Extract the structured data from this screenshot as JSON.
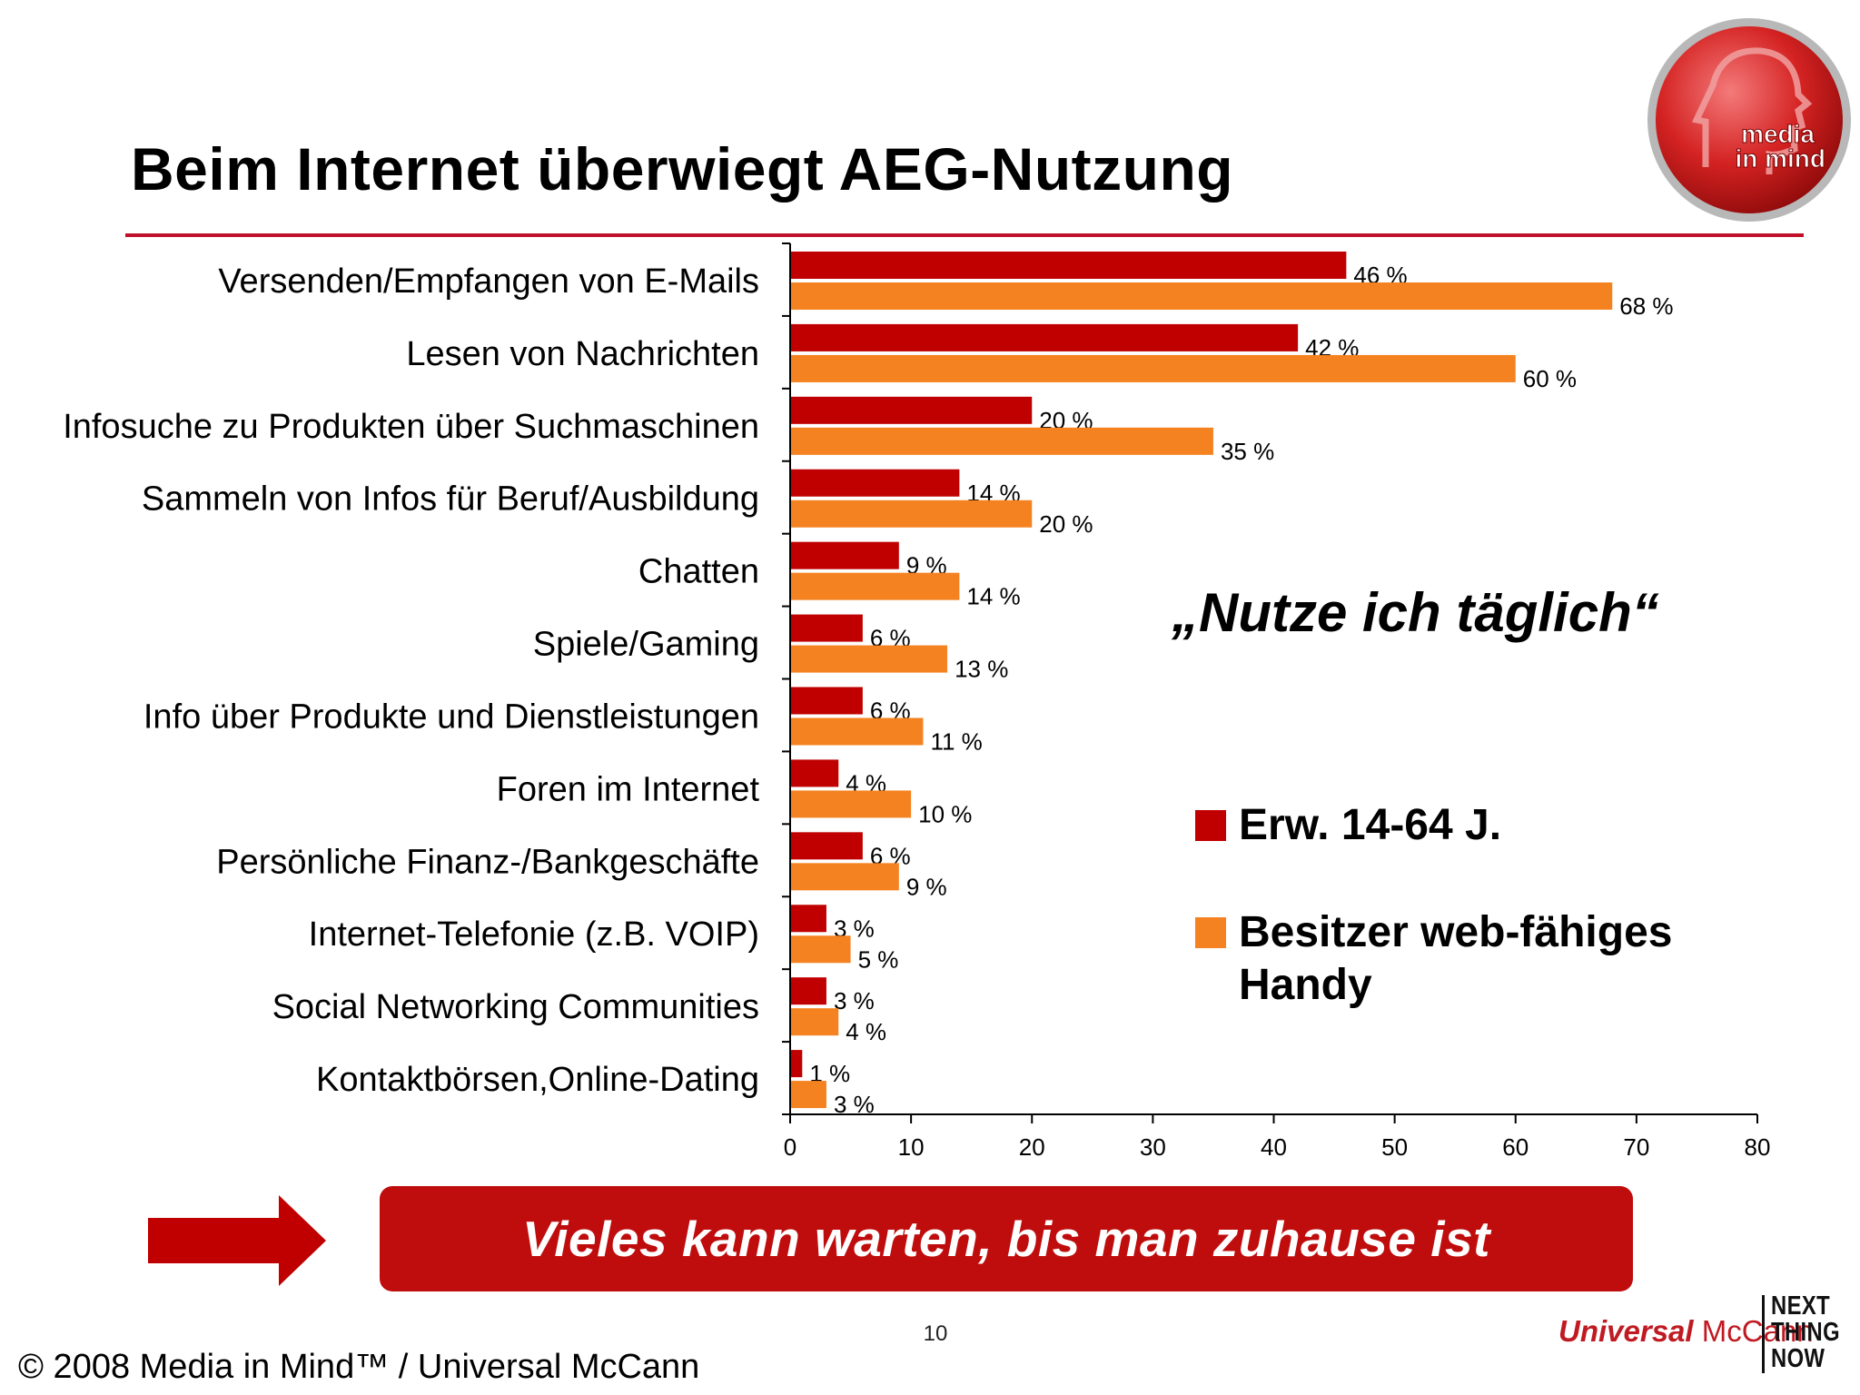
{
  "slide": {
    "title": "Beim Internet überwiegt AEG-Nutzung",
    "quote": "„Nutze ich täglich“",
    "banner_text": "Vieles kann warten, bis man zuhause ist",
    "page_number": "10",
    "copyright": "© 2008 Media in Mind™ / Universal McCann",
    "logo": {
      "line1": "media",
      "line2": "in mind",
      "icon": "head-profile-icon"
    },
    "brand": {
      "universal": "Universal",
      "mccann": "McCann",
      "slogan": [
        "NEXT",
        "THING",
        "NOW"
      ]
    }
  },
  "colors": {
    "accent": "#c0102a",
    "series1": "#c00000",
    "series2": "#f58220",
    "banner": "#bf0d0d"
  },
  "chart_data": {
    "type": "bar",
    "orientation": "horizontal",
    "categories": [
      "Versenden/Empfangen von E-Mails",
      "Lesen von Nachrichten",
      "Infosuche zu Produkten über Suchmaschinen",
      "Sammeln von Infos für Beruf/Ausbildung",
      "Chatten",
      "Spiele/Gaming",
      "Info über Produkte und Dienstleistungen",
      "Foren im Internet",
      "Persönliche Finanz-/Bankgeschäfte",
      "Internet-Telefonie (z.B. VOIP)",
      "Social Networking Communities",
      "Kontaktbörsen,Online-Dating"
    ],
    "series": [
      {
        "name": "Erw. 14-64 J.",
        "color": "#c00000",
        "values": [
          46,
          42,
          20,
          14,
          9,
          6,
          6,
          4,
          6,
          3,
          3,
          1
        ]
      },
      {
        "name": "Besitzer web-fähiges Handy",
        "color": "#f58220",
        "values": [
          68,
          60,
          35,
          20,
          14,
          13,
          11,
          10,
          9,
          5,
          4,
          3
        ]
      }
    ],
    "value_suffix": " %",
    "xlim": [
      0,
      80
    ],
    "xticks": [
      0,
      10,
      20,
      30,
      40,
      50,
      60,
      70,
      80
    ],
    "grid": false,
    "legend_position": "right-middle"
  }
}
